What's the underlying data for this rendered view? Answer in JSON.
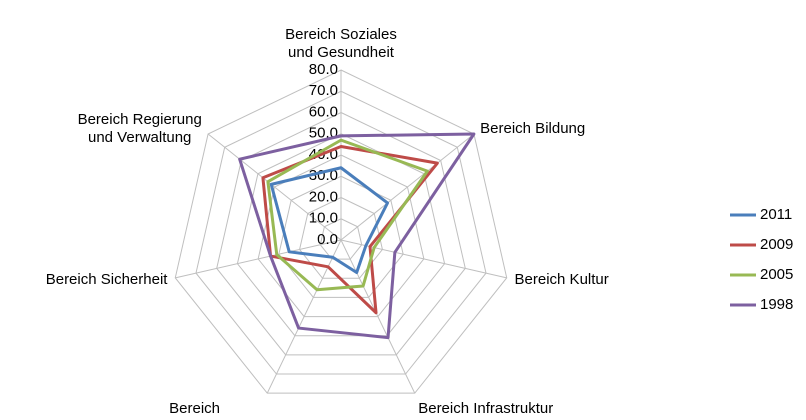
{
  "chart_data": {
    "type": "radar",
    "categories": [
      "Bereich Soziales\nund Gesundheit",
      "Bereich Bildung",
      "Bereich Kultur",
      "Bereich Infrastruktur",
      "Bereich\nWirtschaftsförderung",
      "Bereich Sicherheit",
      "Bereich Regierung\nund Verwaltung"
    ],
    "series": [
      {
        "name": "2011",
        "color": "#4a7ebb",
        "values": [
          34,
          28,
          12,
          17,
          9,
          25,
          42
        ]
      },
      {
        "name": "2009",
        "color": "#be4b48",
        "values": [
          44,
          58,
          14,
          38,
          14,
          34,
          47
        ]
      },
      {
        "name": "2005",
        "color": "#98b954",
        "values": [
          47,
          52,
          16,
          24,
          26,
          31,
          44
        ]
      },
      {
        "name": "1998",
        "color": "#7d60a0",
        "values": [
          49,
          80,
          26,
          51,
          46,
          34,
          61
        ]
      }
    ],
    "ylim": [
      0,
      80
    ],
    "yticks": [
      {
        "value": 0,
        "label": "0.0"
      },
      {
        "value": 10,
        "label": "10.0"
      },
      {
        "value": 20,
        "label": "20.0"
      },
      {
        "value": 30,
        "label": "30.0"
      },
      {
        "value": 40,
        "label": "40.0"
      },
      {
        "value": 50,
        "label": "50.0"
      },
      {
        "value": 60,
        "label": "60.0"
      },
      {
        "value": 70,
        "label": "70.0"
      },
      {
        "value": 80,
        "label": "80.0"
      }
    ],
    "grid": true,
    "legend": "right"
  }
}
